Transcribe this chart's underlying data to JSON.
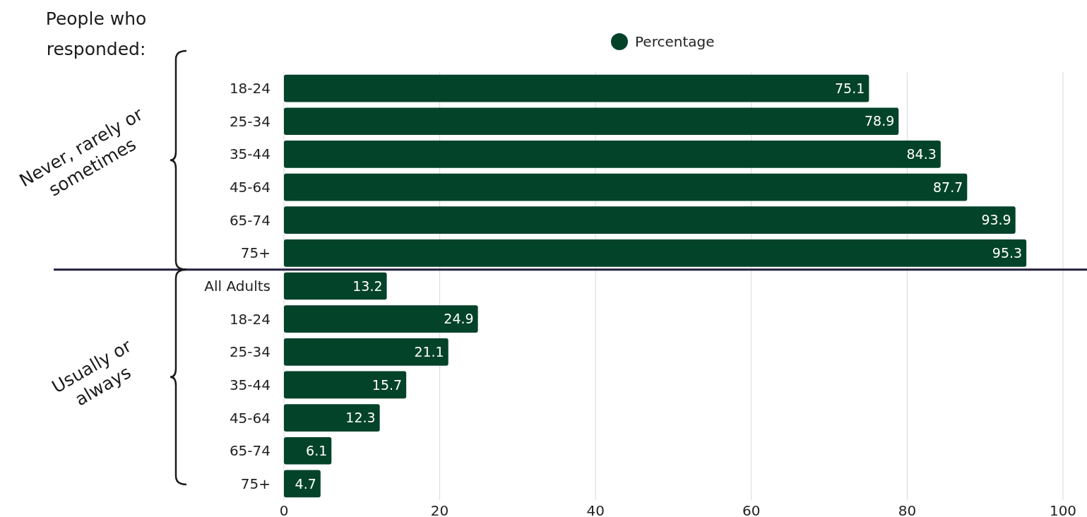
{
  "chart_data": {
    "type": "bar",
    "orientation": "horizontal",
    "categories": [
      "18-24",
      "25-34",
      "35-44",
      "45-64",
      "65-74",
      "75+",
      "All Adults",
      "18-24",
      "25-34",
      "35-44",
      "45-64",
      "65-74",
      "75+"
    ],
    "series": [
      {
        "name": "Percentage",
        "color": "#03432a",
        "values": [
          75.1,
          78.9,
          84.3,
          87.7,
          93.9,
          95.3,
          13.2,
          24.9,
          21.1,
          15.7,
          12.3,
          6.1,
          4.7
        ]
      }
    ],
    "xlim": [
      0,
      100
    ],
    "xticks": [
      0,
      20,
      40,
      60,
      80,
      100
    ],
    "grid": "x",
    "ref_lines": [
      {
        "axis": "y",
        "value": "All Adults",
        "color": "#231d3e"
      }
    ],
    "legend": "top",
    "marker": "circle",
    "data_labels": true,
    "annotations": [
      "People who responded:",
      "Never, rarely or sometimes",
      "Usually or always"
    ]
  }
}
